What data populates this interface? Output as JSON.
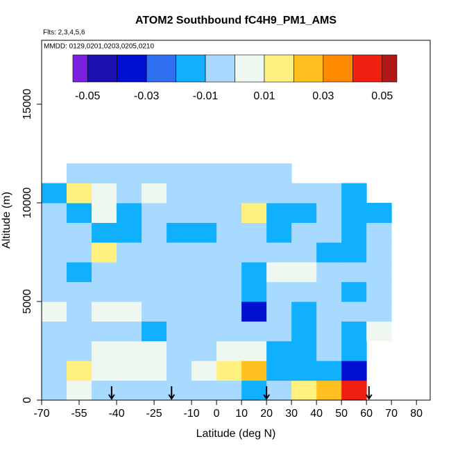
{
  "chart_data": {
    "type": "heatmap",
    "title": "ATOM2 Southbound fC4H9_PM1_AMS",
    "subtitle": "Flts: 2,3,4,5,6",
    "annotation": "MMDD: 0129,0201,0203,0205,0210",
    "x_label": "Latitude (deg N)",
    "y_label": "Altitude (m)",
    "xlim": [
      -70,
      85.5
    ],
    "ylim": [
      0,
      18240
    ],
    "xticks": [
      -70,
      -55,
      -40,
      -25,
      -10,
      0,
      10,
      20,
      30,
      40,
      50,
      60,
      70,
      80
    ],
    "yticks": [
      0,
      5000,
      10000,
      15000
    ],
    "x_bins": [
      -70,
      -60,
      -50,
      -40,
      -30,
      -20,
      -10,
      0,
      10,
      20,
      30,
      40,
      50,
      60,
      70
    ],
    "y_bins": [
      0,
      1000,
      2000,
      3000,
      4000,
      5000,
      6000,
      7000,
      8000,
      9000,
      10000,
      11000,
      12000
    ],
    "z": [
      [
        -0.005,
        0.005,
        -0.005,
        -0.005,
        -0.005,
        -0.005,
        -0.005,
        -0.005,
        -0.012,
        -0.005,
        0.015,
        0.025,
        0.045,
        null
      ],
      [
        -0.005,
        0.015,
        0.005,
        0.005,
        0.005,
        -0.005,
        0.005,
        0.015,
        0.025,
        -0.012,
        -0.012,
        -0.012,
        -0.035,
        null
      ],
      [
        -0.005,
        -0.005,
        0.005,
        0.005,
        0.005,
        -0.005,
        -0.005,
        0.005,
        0.005,
        -0.012,
        -0.012,
        -0.005,
        -0.012,
        null
      ],
      [
        -0.005,
        -0.005,
        -0.005,
        -0.005,
        -0.012,
        -0.005,
        -0.005,
        -0.005,
        -0.005,
        -0.005,
        -0.012,
        -0.005,
        -0.012,
        0.005
      ],
      [
        0.005,
        -0.005,
        0.005,
        0.005,
        -0.005,
        -0.005,
        -0.005,
        -0.005,
        -0.035,
        -0.005,
        -0.012,
        -0.005,
        -0.005,
        -0.005
      ],
      [
        -0.005,
        -0.005,
        -0.005,
        -0.005,
        -0.005,
        -0.005,
        -0.005,
        -0.005,
        -0.012,
        -0.005,
        -0.005,
        -0.005,
        -0.012,
        -0.005
      ],
      [
        -0.005,
        -0.012,
        -0.005,
        -0.005,
        -0.005,
        -0.005,
        -0.005,
        -0.005,
        -0.012,
        0.005,
        0.005,
        -0.005,
        -0.005,
        -0.005
      ],
      [
        -0.005,
        -0.005,
        0.015,
        -0.005,
        -0.005,
        -0.005,
        -0.005,
        -0.005,
        -0.005,
        -0.005,
        -0.005,
        -0.012,
        -0.012,
        -0.005
      ],
      [
        -0.005,
        -0.005,
        -0.012,
        -0.012,
        -0.005,
        -0.012,
        -0.012,
        -0.005,
        -0.005,
        -0.012,
        -0.005,
        -0.005,
        -0.012,
        -0.005
      ],
      [
        -0.005,
        -0.012,
        0.005,
        -0.012,
        -0.005,
        -0.005,
        -0.005,
        -0.005,
        0.015,
        -0.012,
        -0.012,
        -0.005,
        -0.012,
        -0.012
      ],
      [
        -0.012,
        0.015,
        0.005,
        -0.005,
        0.005,
        -0.005,
        -0.005,
        -0.005,
        -0.005,
        -0.005,
        -0.005,
        -0.005,
        -0.012,
        null
      ],
      [
        null,
        -0.005,
        -0.005,
        -0.005,
        -0.005,
        -0.005,
        -0.005,
        -0.005,
        -0.005,
        -0.005,
        null,
        null,
        null,
        null
      ]
    ],
    "colorbar": {
      "breaks": [
        -0.055,
        -0.05,
        -0.04,
        -0.03,
        -0.02,
        -0.01,
        0,
        0.01,
        0.02,
        0.03,
        0.04,
        0.05,
        0.055
      ],
      "colors": [
        "#7b1fe0",
        "#1a10b0",
        "#0010d0",
        "#2f70f0",
        "#10b0ff",
        "#a8daff",
        "#eef8f0",
        "#fff080",
        "#ffc020",
        "#ff8a00",
        "#f02010",
        "#b01818"
      ],
      "ticks": [
        -0.05,
        -0.03,
        -0.01,
        0.01,
        0.03,
        0.05
      ]
    },
    "arrows": [
      -42,
      -18,
      20,
      61
    ]
  }
}
